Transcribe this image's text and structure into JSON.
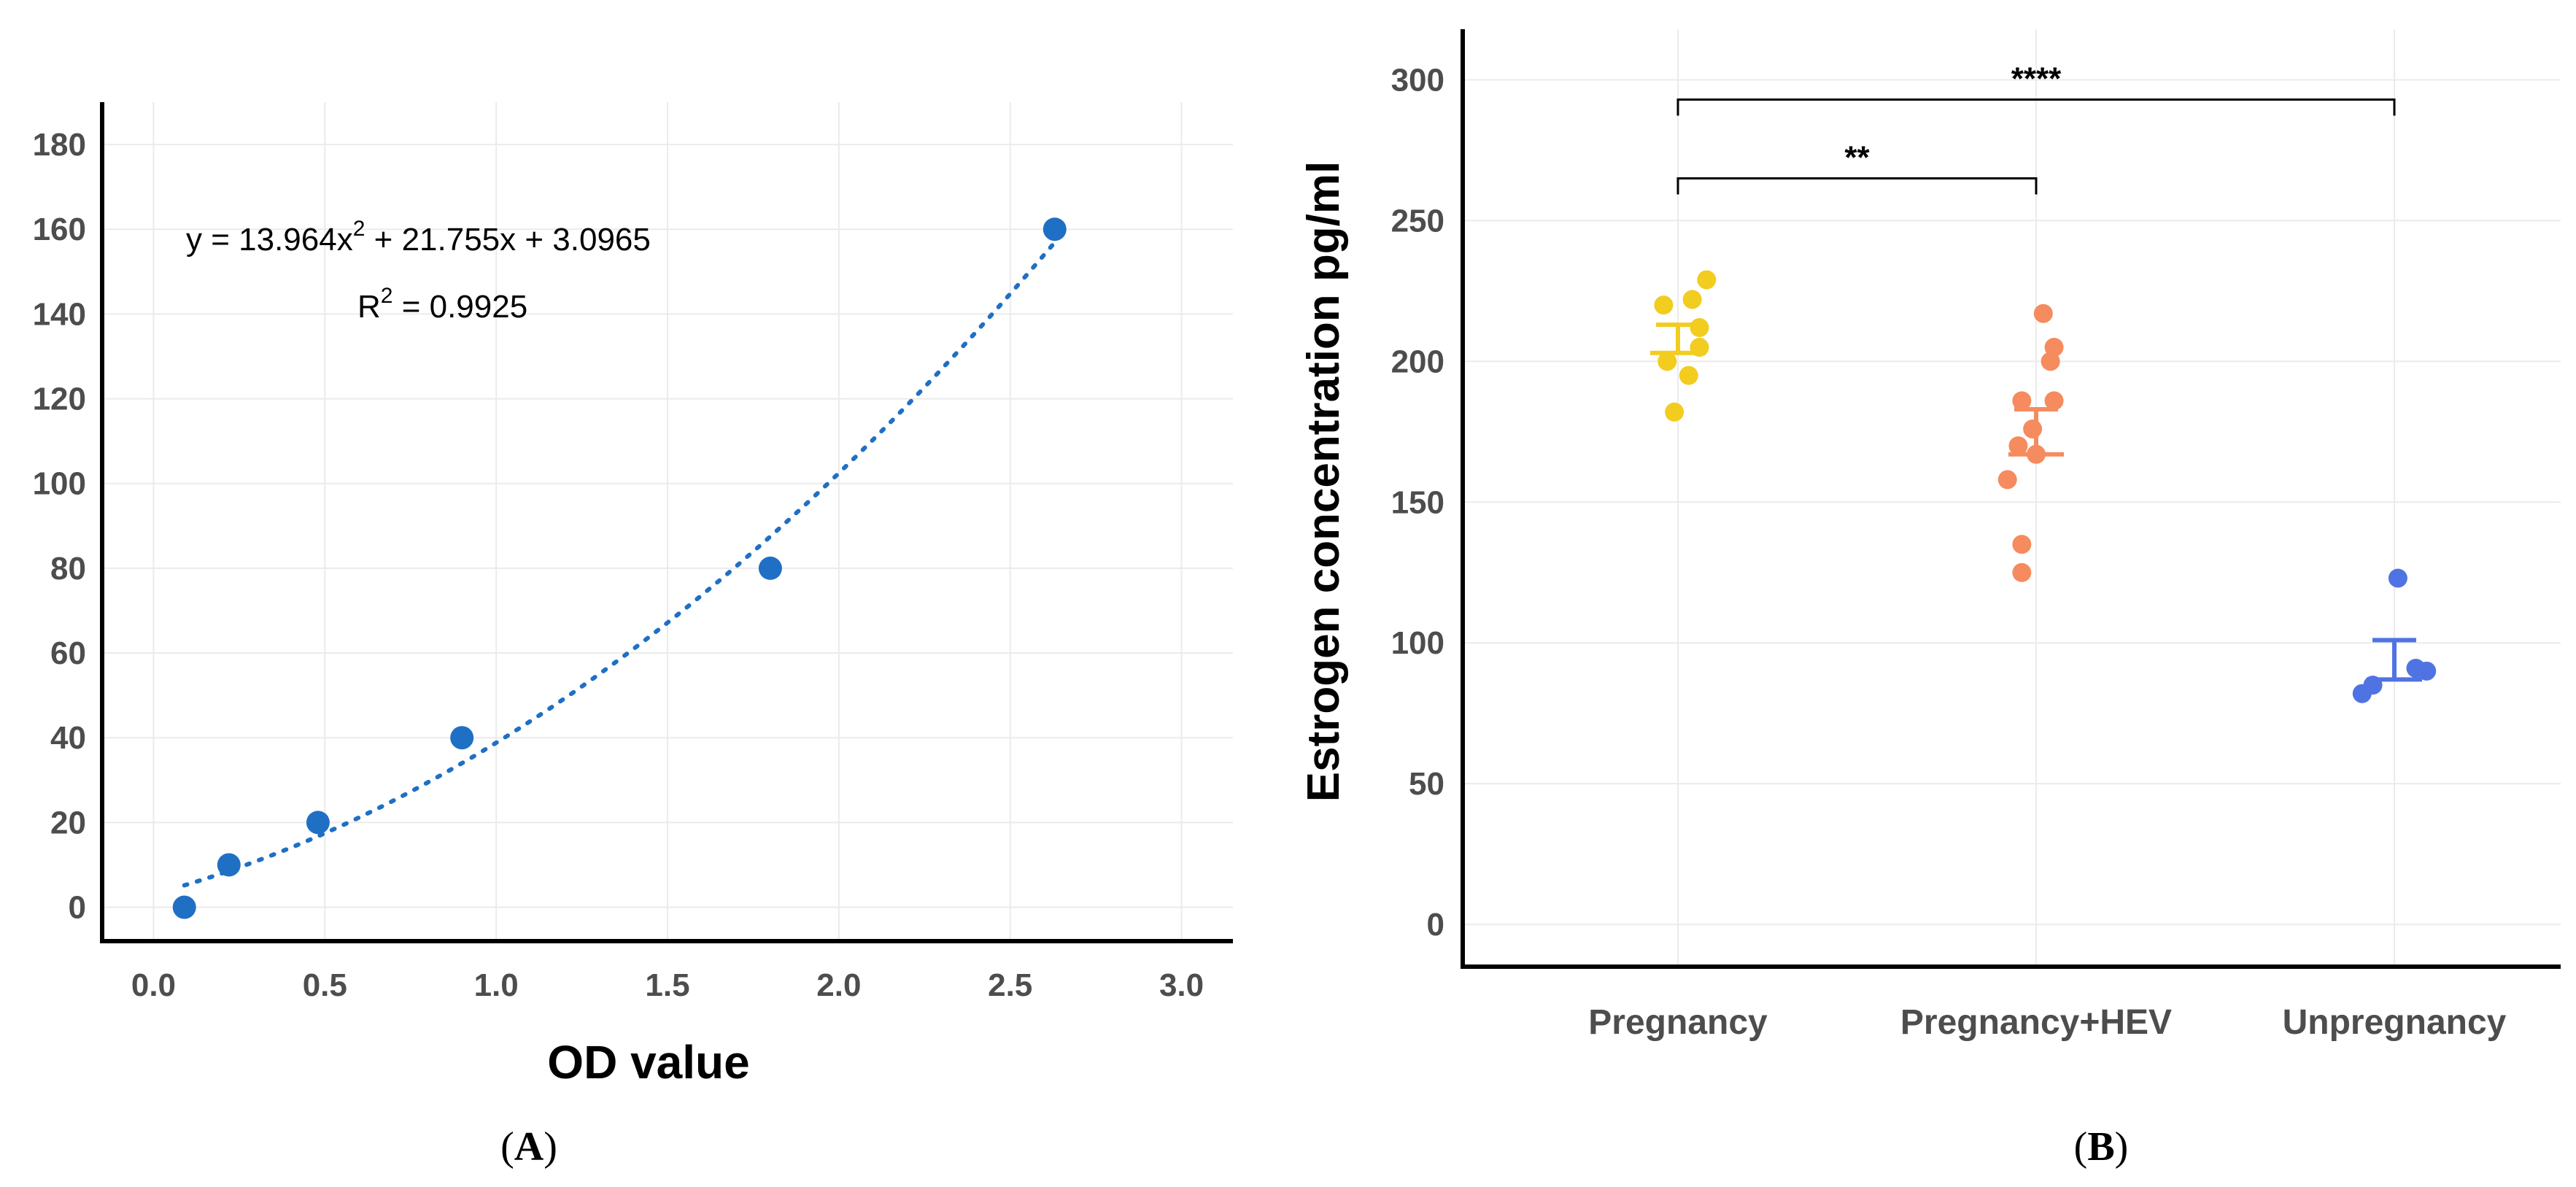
{
  "chart_data": [
    {
      "type": "scatter",
      "panel_label": "A",
      "point_color": "#1f6fc5",
      "xlabel": "OD value",
      "ylabel": "",
      "xlim": [
        -0.15,
        3.15
      ],
      "ylim": [
        -8,
        190
      ],
      "xticks": [
        0.0,
        0.5,
        1.0,
        1.5,
        2.0,
        2.5,
        3.0
      ],
      "xtick_labels": [
        "0.0",
        "0.5",
        "1.0",
        "1.5",
        "2.0",
        "2.5",
        "3.0"
      ],
      "yticks": [
        0,
        20,
        40,
        60,
        80,
        100,
        120,
        140,
        160,
        180
      ],
      "ytick_labels": [
        "0",
        "20",
        "40",
        "60",
        "80",
        "100",
        "120",
        "140",
        "160",
        "180"
      ],
      "points": [
        {
          "x": 0.09,
          "y": 0
        },
        {
          "x": 0.22,
          "y": 10
        },
        {
          "x": 0.48,
          "y": 20
        },
        {
          "x": 0.9,
          "y": 40
        },
        {
          "x": 1.8,
          "y": 80
        },
        {
          "x": 2.63,
          "y": 160
        }
      ],
      "trendline": {
        "type": "polynomial",
        "a": 13.964,
        "b": 21.755,
        "c": 3.0965,
        "x_from": 0.09,
        "x_to": 2.63
      },
      "equation": {
        "prefix": "y = 13.964x",
        "sup": "2",
        "suffix": " + 21.755x + 3.0965"
      },
      "r_squared": {
        "prefix": "R",
        "sup": "2",
        "suffix": " = 0.9925"
      }
    },
    {
      "type": "scatter",
      "panel_label": "B",
      "ylabel": "Estrogen concentration pg/ml",
      "ylim": [
        -15,
        318
      ],
      "yticks": [
        0,
        50,
        100,
        150,
        200,
        250,
        300
      ],
      "ytick_labels": [
        "0",
        "50",
        "100",
        "150",
        "200",
        "250",
        "300"
      ],
      "categories": [
        "Pregnancy",
        "Pregnancy+HEV",
        "Unpregnancy"
      ],
      "groups": [
        {
          "name": "Pregnancy",
          "color": "#f2cc1f",
          "mean": 208,
          "sem": 5,
          "points": [
            {
              "offset": 0.08,
              "y": 229
            },
            {
              "offset": 0.04,
              "y": 222
            },
            {
              "offset": -0.04,
              "y": 220
            },
            {
              "offset": 0.06,
              "y": 212
            },
            {
              "offset": 0.06,
              "y": 205
            },
            {
              "offset": -0.03,
              "y": 200
            },
            {
              "offset": 0.03,
              "y": 195
            },
            {
              "offset": -0.01,
              "y": 182
            }
          ]
        },
        {
          "name": "Pregnancy+HEV",
          "color": "#f58b5e",
          "mean": 175,
          "sem": 8,
          "points": [
            {
              "offset": 0.02,
              "y": 217
            },
            {
              "offset": 0.05,
              "y": 205
            },
            {
              "offset": 0.04,
              "y": 200
            },
            {
              "offset": -0.04,
              "y": 186
            },
            {
              "offset": 0.05,
              "y": 186
            },
            {
              "offset": -0.01,
              "y": 176
            },
            {
              "offset": -0.05,
              "y": 170
            },
            {
              "offset": 0.0,
              "y": 167
            },
            {
              "offset": -0.08,
              "y": 158
            },
            {
              "offset": -0.04,
              "y": 135
            },
            {
              "offset": -0.04,
              "y": 125
            }
          ]
        },
        {
          "name": "Unpregnancy",
          "color": "#4f73e3",
          "mean": 94,
          "sem": 7,
          "points": [
            {
              "offset": 0.01,
              "y": 123
            },
            {
              "offset": 0.06,
              "y": 91
            },
            {
              "offset": 0.09,
              "y": 90
            },
            {
              "offset": -0.06,
              "y": 85
            },
            {
              "offset": -0.09,
              "y": 82
            }
          ]
        }
      ],
      "annotations": [
        {
          "from": 0,
          "to": 1,
          "y": 265,
          "label": "**"
        },
        {
          "from": 0,
          "to": 2,
          "y": 293,
          "label": "****"
        }
      ]
    }
  ]
}
